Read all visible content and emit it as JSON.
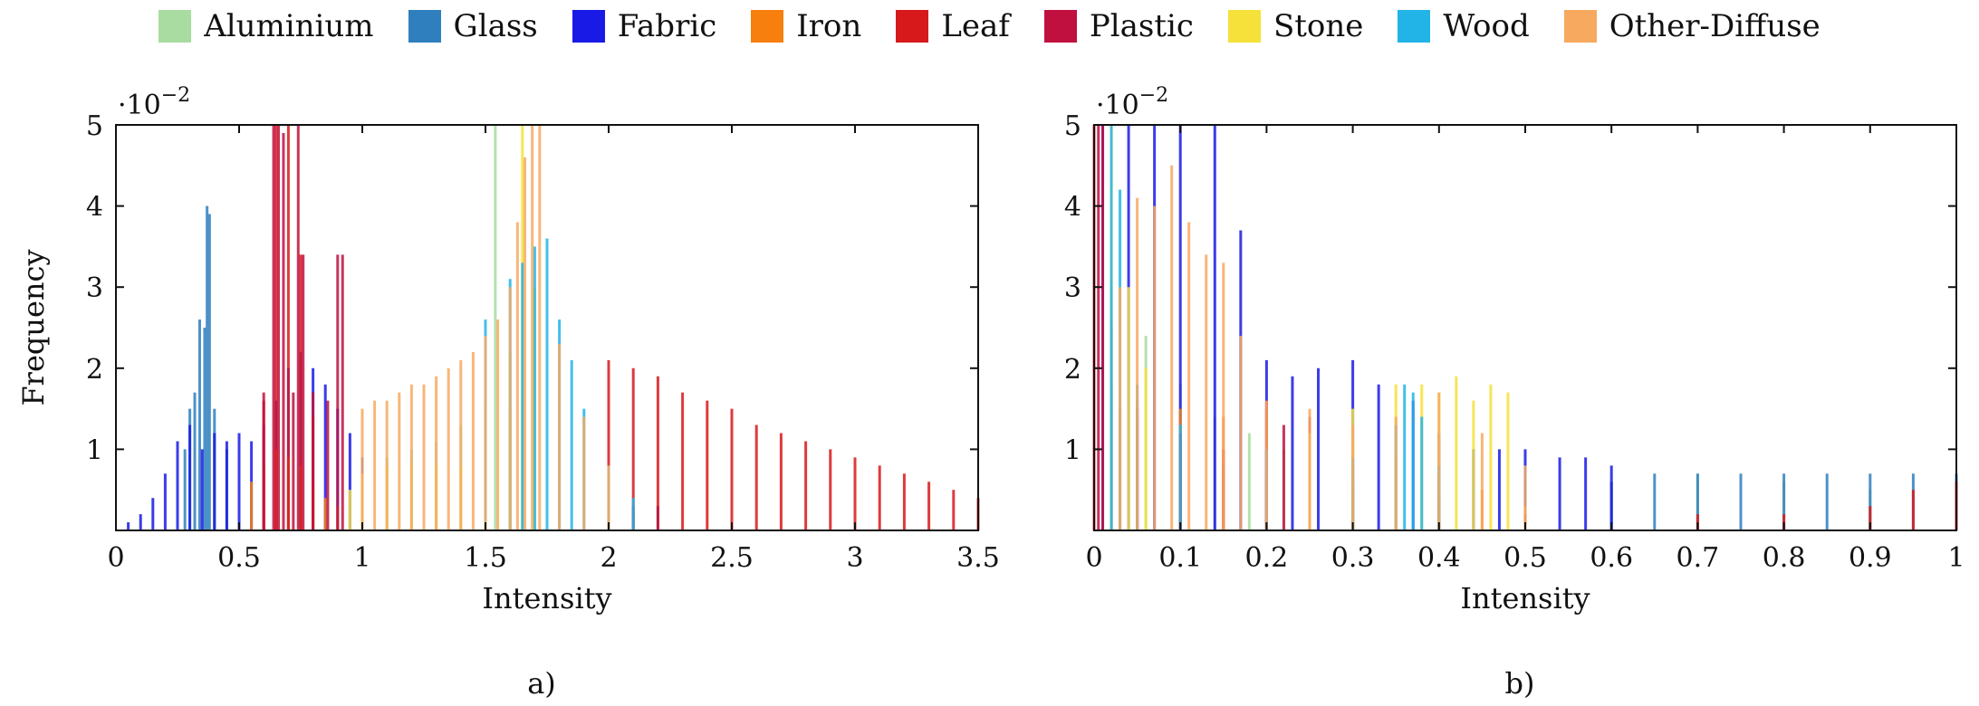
{
  "legend": [
    {
      "label": "Aluminium",
      "color": "#a8dca0"
    },
    {
      "label": "Glass",
      "color": "#2f7fbe"
    },
    {
      "label": "Fabric",
      "color": "#1a1ae6"
    },
    {
      "label": "Iron",
      "color": "#f77f0e"
    },
    {
      "label": "Leaf",
      "color": "#d7191c"
    },
    {
      "label": "Plastic",
      "color": "#c0103f"
    },
    {
      "label": "Stone",
      "color": "#f5e13a"
    },
    {
      "label": "Wood",
      "color": "#22b4e6"
    },
    {
      "label": "Other-Diffuse",
      "color": "#f7a960"
    }
  ],
  "chart_data": [
    {
      "type": "bar",
      "panel_label": "a)",
      "xlabel": "Intensity",
      "ylabel": "Frequency",
      "y_multiplier": "·10",
      "y_exponent": "−2",
      "xlim": [
        0,
        3.5
      ],
      "ylim": [
        0,
        5
      ],
      "xticks": [
        "0",
        "0.5",
        "1",
        "1.5",
        "2",
        "2.5",
        "3",
        "3.5"
      ],
      "yticks": [
        "1",
        "2",
        "3",
        "4",
        "5"
      ],
      "series": [
        {
          "name": "Aluminium",
          "x": [
            1.0,
            1.1,
            1.2,
            1.3,
            1.4,
            1.5,
            1.54,
            1.6,
            1.65
          ],
          "values": [
            0.8,
            0.9,
            1.0,
            1.1,
            1.3,
            1.6,
            5.0,
            2.2,
            1.6
          ]
        },
        {
          "name": "Glass",
          "x": [
            0.28,
            0.3,
            0.32,
            0.34,
            0.36,
            0.37,
            0.38,
            0.4,
            0.45
          ],
          "values": [
            1.0,
            1.5,
            1.7,
            2.6,
            2.5,
            4.0,
            3.9,
            1.5,
            1.0
          ]
        },
        {
          "name": "Fabric",
          "x": [
            0.05,
            0.1,
            0.15,
            0.2,
            0.25,
            0.3,
            0.35,
            0.4,
            0.45,
            0.5,
            0.55,
            0.6,
            0.65,
            0.7,
            0.75,
            0.8,
            0.85,
            0.9,
            0.95,
            1.0,
            2.0,
            2.1,
            2.2
          ],
          "values": [
            0.1,
            0.2,
            0.4,
            0.7,
            1.1,
            1.3,
            1.0,
            1.2,
            1.1,
            1.2,
            1.1,
            1.3,
            1.6,
            2.0,
            2.2,
            2.0,
            1.8,
            1.5,
            1.2,
            0.9,
            0.4,
            0.3,
            0.3
          ]
        },
        {
          "name": "Iron",
          "x": [
            0.55,
            0.6,
            0.65,
            0.7,
            0.75,
            0.8,
            0.85,
            0.9
          ],
          "values": [
            0.6,
            0.8,
            1.0,
            0.9,
            0.8,
            0.6,
            0.4,
            0.3
          ]
        },
        {
          "name": "Leaf",
          "x": [
            0.6,
            0.65,
            0.7,
            0.75,
            0.8,
            2.0,
            2.1,
            2.2,
            2.3,
            2.4,
            2.5,
            2.6,
            2.7,
            2.8,
            2.9,
            3.0,
            3.1,
            3.2,
            3.3,
            3.4,
            3.5
          ],
          "values": [
            1.6,
            5.0,
            5.0,
            3.4,
            1.4,
            2.1,
            2.0,
            1.9,
            1.7,
            1.6,
            1.5,
            1.3,
            1.2,
            1.1,
            1.0,
            0.9,
            0.8,
            0.7,
            0.6,
            0.5,
            0.4
          ]
        },
        {
          "name": "Plastic",
          "x": [
            0.6,
            0.64,
            0.66,
            0.68,
            0.72,
            0.74,
            0.76,
            0.8,
            0.86,
            0.9,
            0.92
          ],
          "values": [
            1.7,
            5.0,
            5.0,
            4.9,
            1.7,
            5.0,
            3.4,
            1.7,
            1.6,
            3.4,
            3.4
          ]
        },
        {
          "name": "Stone",
          "x": [
            0.95,
            1.0,
            1.1,
            1.2,
            1.3,
            1.4,
            1.5,
            1.6,
            1.65,
            1.7
          ],
          "values": [
            0.5,
            0.7,
            0.8,
            0.8,
            0.8,
            0.8,
            0.9,
            1.5,
            5.0,
            3.0
          ]
        },
        {
          "name": "Wood",
          "x": [
            1.5,
            1.6,
            1.65,
            1.7,
            1.75,
            1.8,
            1.85,
            1.9,
            2.0,
            2.1
          ],
          "values": [
            2.6,
            3.1,
            3.3,
            3.5,
            3.6,
            2.6,
            2.1,
            1.5,
            0.8,
            0.4
          ]
        },
        {
          "name": "Other-Diffuse",
          "x": [
            1.0,
            1.05,
            1.1,
            1.15,
            1.2,
            1.25,
            1.3,
            1.35,
            1.4,
            1.45,
            1.5,
            1.55,
            1.6,
            1.63,
            1.66,
            1.69,
            1.72,
            1.8,
            1.9,
            2.0
          ],
          "values": [
            1.5,
            1.6,
            1.6,
            1.7,
            1.8,
            1.8,
            1.9,
            2.0,
            2.1,
            2.2,
            2.4,
            2.6,
            3.0,
            3.8,
            4.6,
            5.0,
            5.0,
            2.3,
            1.4,
            0.8
          ]
        }
      ]
    },
    {
      "type": "bar",
      "panel_label": "b)",
      "xlabel": "Intensity",
      "ylabel": "",
      "y_multiplier": "·10",
      "y_exponent": "−2",
      "xlim": [
        0,
        1
      ],
      "ylim": [
        0,
        5
      ],
      "xticks": [
        "0",
        "0.1",
        "0.2",
        "0.3",
        "0.4",
        "0.5",
        "0.6",
        "0.7",
        "0.8",
        "0.9",
        "1"
      ],
      "yticks": [
        "1",
        "2",
        "3",
        "4",
        "5"
      ],
      "series": [
        {
          "name": "Aluminium",
          "x": [
            0.02,
            0.06,
            0.1,
            0.14,
            0.18,
            0.22,
            0.3,
            0.4,
            0.5,
            0.6,
            0.7,
            0.8,
            0.9
          ],
          "values": [
            3.0,
            2.4,
            1.8,
            1.4,
            1.2,
            1.0,
            0.8,
            0.7,
            0.6,
            0.6,
            0.7,
            0.6,
            0.5
          ]
        },
        {
          "name": "Glass",
          "x": [
            0.02,
            0.05,
            0.1,
            0.15,
            0.2,
            0.3,
            0.4,
            0.5,
            0.6,
            0.65,
            0.7,
            0.75,
            0.8,
            0.85,
            0.9,
            0.95,
            1.0
          ],
          "values": [
            1.8,
            1.4,
            1.0,
            0.8,
            0.7,
            0.5,
            0.5,
            0.6,
            0.6,
            0.7,
            0.7,
            0.7,
            0.7,
            0.7,
            0.7,
            0.7,
            0.7
          ]
        },
        {
          "name": "Fabric",
          "x": [
            0.01,
            0.04,
            0.07,
            0.1,
            0.14,
            0.17,
            0.2,
            0.23,
            0.26,
            0.3,
            0.33,
            0.37,
            0.4,
            0.44,
            0.47,
            0.5,
            0.54,
            0.57,
            0.6
          ],
          "values": [
            5.0,
            5.0,
            5.0,
            5.0,
            5.0,
            3.7,
            2.1,
            1.9,
            2.0,
            2.1,
            1.8,
            1.6,
            1.2,
            1.0,
            1.0,
            1.0,
            0.9,
            0.9,
            0.8
          ]
        },
        {
          "name": "Iron",
          "x": [
            0.05,
            0.1,
            0.15,
            0.2,
            0.25,
            0.3,
            0.35,
            0.4,
            0.45,
            0.5
          ],
          "values": [
            1.6,
            1.5,
            1.4,
            1.5,
            1.3,
            1.1,
            0.9,
            0.7,
            0.5,
            0.3
          ]
        },
        {
          "name": "Leaf",
          "x": [
            0.0,
            0.02,
            0.05,
            0.1,
            0.15,
            0.2,
            0.25,
            0.3,
            0.4,
            0.5,
            0.7,
            0.8,
            0.9,
            0.95,
            1.0
          ],
          "values": [
            5.0,
            2.5,
            1.5,
            1.2,
            1.0,
            1.0,
            0.8,
            0.6,
            0.4,
            0.2,
            0.2,
            0.2,
            0.3,
            0.5,
            0.6
          ]
        },
        {
          "name": "Plastic",
          "x": [
            0.005,
            0.01,
            0.02,
            0.03,
            0.2,
            0.22,
            0.25
          ],
          "values": [
            5.0,
            5.0,
            2.6,
            1.5,
            1.6,
            1.3,
            1.4
          ]
        },
        {
          "name": "Stone",
          "x": [
            0.02,
            0.04,
            0.06,
            0.25,
            0.3,
            0.35,
            0.38,
            0.4,
            0.42,
            0.44,
            0.46,
            0.48
          ],
          "values": [
            5.0,
            3.0,
            2.0,
            1.2,
            1.5,
            1.8,
            1.8,
            1.7,
            1.9,
            1.6,
            1.8,
            1.7
          ]
        },
        {
          "name": "Wood",
          "x": [
            0.02,
            0.03,
            0.05,
            0.1,
            0.2,
            0.3,
            0.35,
            0.36,
            0.37,
            0.38,
            0.4
          ],
          "values": [
            5.0,
            4.2,
            1.8,
            1.3,
            1.0,
            0.9,
            1.3,
            1.8,
            1.7,
            1.4,
            0.8
          ]
        },
        {
          "name": "Other-Diffuse",
          "x": [
            0.03,
            0.05,
            0.07,
            0.09,
            0.11,
            0.13,
            0.15,
            0.17,
            0.2,
            0.25,
            0.3,
            0.35,
            0.4,
            0.45,
            0.5
          ],
          "values": [
            3.0,
            4.1,
            4.0,
            4.5,
            3.8,
            3.4,
            3.3,
            2.4,
            1.6,
            1.5,
            1.3,
            1.4,
            1.7,
            1.2,
            0.8
          ]
        }
      ]
    }
  ]
}
